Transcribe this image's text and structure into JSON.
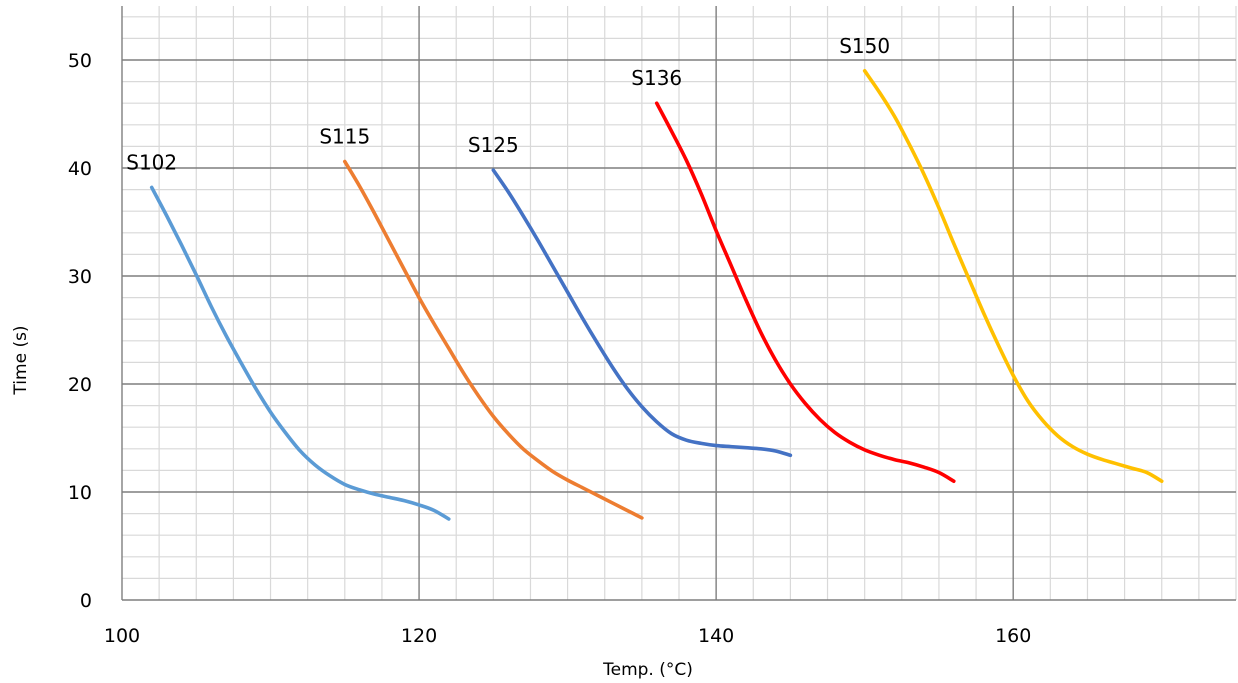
{
  "chart_data": {
    "type": "line",
    "title": "",
    "xlabel": "Temp. (°C)",
    "ylabel": "Time (s)",
    "xlim": [
      100,
      175
    ],
    "ylim": [
      0,
      55
    ],
    "x_ticks": [
      100,
      120,
      140,
      160
    ],
    "y_ticks": [
      0,
      10,
      20,
      30,
      40,
      50
    ],
    "x_minor_step": 2.5,
    "y_minor_step": 2,
    "grid": true,
    "legend": "none",
    "series": [
      {
        "name": "S102",
        "color": "#5b9bd5",
        "x": [
          102,
          103,
          104,
          105,
          106,
          107,
          108,
          109,
          110,
          111,
          112,
          113,
          114,
          115,
          116,
          117,
          118,
          119,
          120,
          121,
          122
        ],
        "y": [
          38.2,
          35.6,
          32.9,
          30.1,
          27.2,
          24.5,
          22.0,
          19.6,
          17.4,
          15.5,
          13.8,
          12.5,
          11.5,
          10.7,
          10.2,
          9.8,
          9.5,
          9.2,
          8.8,
          8.3,
          7.5
        ]
      },
      {
        "name": "S115",
        "color": "#ed7d31",
        "x": [
          115,
          116,
          117,
          118,
          119,
          120,
          121,
          122,
          123,
          124,
          125,
          126,
          127,
          128,
          129,
          130,
          131,
          132,
          133,
          134,
          135
        ],
        "y": [
          40.6,
          38.3,
          35.8,
          33.2,
          30.6,
          28.0,
          25.6,
          23.3,
          21.0,
          18.9,
          17.0,
          15.4,
          14.0,
          12.9,
          11.9,
          11.1,
          10.4,
          9.7,
          9.0,
          8.3,
          7.6
        ]
      },
      {
        "name": "S125",
        "color": "#4472c4",
        "x": [
          125,
          126,
          127,
          128,
          129,
          130,
          131,
          132,
          133,
          134,
          135,
          136,
          137,
          138,
          139,
          140,
          141,
          142,
          143,
          144,
          145
        ],
        "y": [
          39.8,
          37.8,
          35.6,
          33.3,
          30.9,
          28.5,
          26.1,
          23.8,
          21.6,
          19.6,
          17.9,
          16.5,
          15.4,
          14.8,
          14.5,
          14.3,
          14.2,
          14.1,
          14.0,
          13.8,
          13.4
        ]
      },
      {
        "name": "S136",
        "color": "#ff0000",
        "x": [
          136,
          137,
          138,
          139,
          140,
          141,
          142,
          143,
          144,
          145,
          146,
          147,
          148,
          149,
          150,
          151,
          152,
          153,
          154,
          155,
          156
        ],
        "y": [
          46.0,
          43.4,
          40.7,
          37.6,
          34.2,
          31.0,
          27.8,
          24.8,
          22.2,
          20.0,
          18.2,
          16.7,
          15.5,
          14.6,
          13.9,
          13.4,
          13.0,
          12.7,
          12.3,
          11.8,
          11.0
        ]
      },
      {
        "name": "S150",
        "color": "#ffc000",
        "x": [
          150,
          151,
          152,
          153,
          154,
          155,
          156,
          157,
          158,
          159,
          160,
          161,
          162,
          163,
          164,
          165,
          166,
          167,
          168,
          169,
          170
        ],
        "y": [
          49.0,
          47.0,
          44.8,
          42.2,
          39.4,
          36.3,
          33.0,
          29.8,
          26.6,
          23.6,
          20.8,
          18.4,
          16.6,
          15.2,
          14.2,
          13.5,
          13.0,
          12.6,
          12.2,
          11.8,
          11.0
        ]
      }
    ]
  }
}
